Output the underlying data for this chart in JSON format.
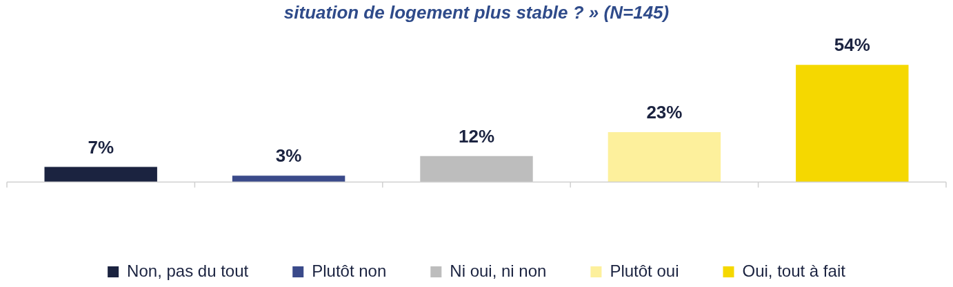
{
  "chart_data": {
    "type": "bar",
    "title": "situation de logement plus stable ? » (N=145)",
    "categories": [
      null,
      null,
      null,
      null,
      null
    ],
    "series": [
      {
        "name": "Non, pas du tout",
        "color": "#1b2340",
        "values": [
          7,
          null,
          null,
          null,
          null
        ],
        "value_labels": [
          "7%",
          null,
          null,
          null,
          null
        ]
      },
      {
        "name": "Plutôt non",
        "color": "#3a4a8a",
        "values": [
          null,
          3,
          null,
          null,
          null
        ],
        "value_labels": [
          null,
          "3%",
          null,
          null,
          null
        ]
      },
      {
        "name": "Ni oui, ni non",
        "color": "#bdbdbd",
        "values": [
          null,
          null,
          12,
          null,
          null
        ],
        "value_labels": [
          null,
          null,
          "12%",
          null,
          null
        ]
      },
      {
        "name": "Plutôt oui",
        "color": "#fdf09c",
        "values": [
          null,
          null,
          null,
          23,
          null
        ],
        "value_labels": [
          null,
          null,
          null,
          "23%",
          null
        ]
      },
      {
        "name": "Oui, tout à fait",
        "color": "#f5d800",
        "values": [
          null,
          null,
          null,
          null,
          54
        ],
        "value_labels": [
          null,
          null,
          null,
          null,
          "54%"
        ]
      }
    ],
    "stacked": true,
    "legend": "bottom",
    "grid": false
  }
}
